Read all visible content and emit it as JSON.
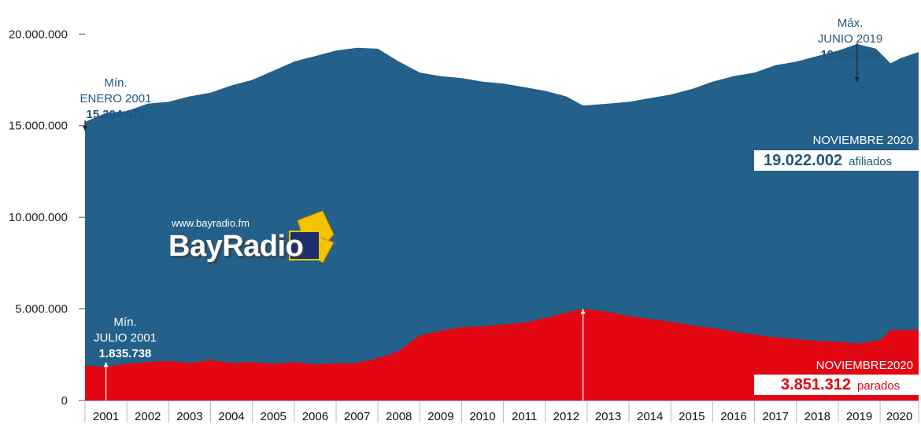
{
  "chart_data": {
    "type": "area",
    "x_range": [
      2001.0,
      2020.92
    ],
    "ylim": [
      0,
      21000000
    ],
    "yticks": [
      0,
      5000000,
      10000000,
      15000000,
      20000000
    ],
    "ytick_labels": [
      "0",
      "5.000.000",
      "10.000.000",
      "15.000.000",
      "20.000.000"
    ],
    "xtick_labels": [
      "2001",
      "2002",
      "2003",
      "2004",
      "2005",
      "2006",
      "2007",
      "2008",
      "2009",
      "2010",
      "2011",
      "2012",
      "2013",
      "2014",
      "2015",
      "2016",
      "2017",
      "2018",
      "2019",
      "2020"
    ],
    "series": [
      {
        "key": "afiliados",
        "color": "#23608a",
        "x": [
          2001.0,
          2001.5,
          2002.0,
          2002.5,
          2003.0,
          2003.5,
          2004.0,
          2004.5,
          2005.0,
          2005.5,
          2006.0,
          2006.5,
          2007.0,
          2007.5,
          2008.0,
          2008.5,
          2009.0,
          2009.5,
          2010.0,
          2010.5,
          2011.0,
          2011.5,
          2012.0,
          2012.5,
          2012.9,
          2013.5,
          2014.0,
          2014.5,
          2015.0,
          2015.5,
          2016.0,
          2016.5,
          2017.0,
          2017.5,
          2018.0,
          2018.5,
          2019.0,
          2019.45,
          2019.9,
          2020.25,
          2020.5,
          2020.92
        ],
        "y": [
          15204072,
          15700000,
          15800000,
          16200000,
          16300000,
          16600000,
          16800000,
          17200000,
          17500000,
          18000000,
          18500000,
          18800000,
          19100000,
          19250000,
          19200000,
          18500000,
          17900000,
          17700000,
          17600000,
          17400000,
          17300000,
          17100000,
          16900000,
          16600000,
          16100000,
          16200000,
          16300000,
          16500000,
          16700000,
          17000000,
          17400000,
          17700000,
          17900000,
          18300000,
          18500000,
          18800000,
          19100000,
          19458689,
          19200000,
          18400000,
          18700000,
          19022002
        ]
      },
      {
        "key": "parados",
        "color": "#e30613",
        "x": [
          2001.0,
          2001.5,
          2002.0,
          2002.5,
          2003.0,
          2003.5,
          2004.0,
          2004.5,
          2005.0,
          2005.5,
          2006.0,
          2006.5,
          2007.0,
          2007.5,
          2008.0,
          2008.5,
          2009.0,
          2009.5,
          2010.0,
          2010.5,
          2011.0,
          2011.5,
          2012.0,
          2012.5,
          2012.9,
          2013.5,
          2014.0,
          2014.5,
          2015.0,
          2015.5,
          2016.0,
          2016.5,
          2017.0,
          2017.5,
          2018.0,
          2018.5,
          2019.0,
          2019.5,
          2020.0,
          2020.25,
          2020.5,
          2020.92
        ],
        "y": [
          1900000,
          1835738,
          2000000,
          2100000,
          2150000,
          2050000,
          2200000,
          2050000,
          2100000,
          2000000,
          2100000,
          1980000,
          2030000,
          2050000,
          2300000,
          2700000,
          3550000,
          3800000,
          4000000,
          4050000,
          4150000,
          4250000,
          4500000,
          4800000,
          5000000,
          4850000,
          4600000,
          4450000,
          4300000,
          4100000,
          3950000,
          3750000,
          3600000,
          3450000,
          3350000,
          3250000,
          3200000,
          3100000,
          3300000,
          3850000,
          3850000,
          3851312
        ]
      }
    ],
    "annotations": {
      "min_afiliados": {
        "line1": "Mín.",
        "line2": "ENERO 2001",
        "value": "15.204.072"
      },
      "max_afiliados": {
        "line1": "Máx.",
        "line2": "JUNIO 2019",
        "value": "19.458.689"
      },
      "min_parados": {
        "line1": "Mín.",
        "line2": "JULIO 2001",
        "value": "1.835.738"
      },
      "last_afiliados": {
        "caption": "NOVIEMBRE 2020",
        "value": "19.022.002",
        "unit": "afiliados"
      },
      "last_parados": {
        "caption": "NOVIEMBRE2020",
        "value": "3.851.312",
        "unit": "parados"
      }
    }
  },
  "logo": {
    "url": "www.bayradio.fm",
    "name": "BayRadio"
  }
}
